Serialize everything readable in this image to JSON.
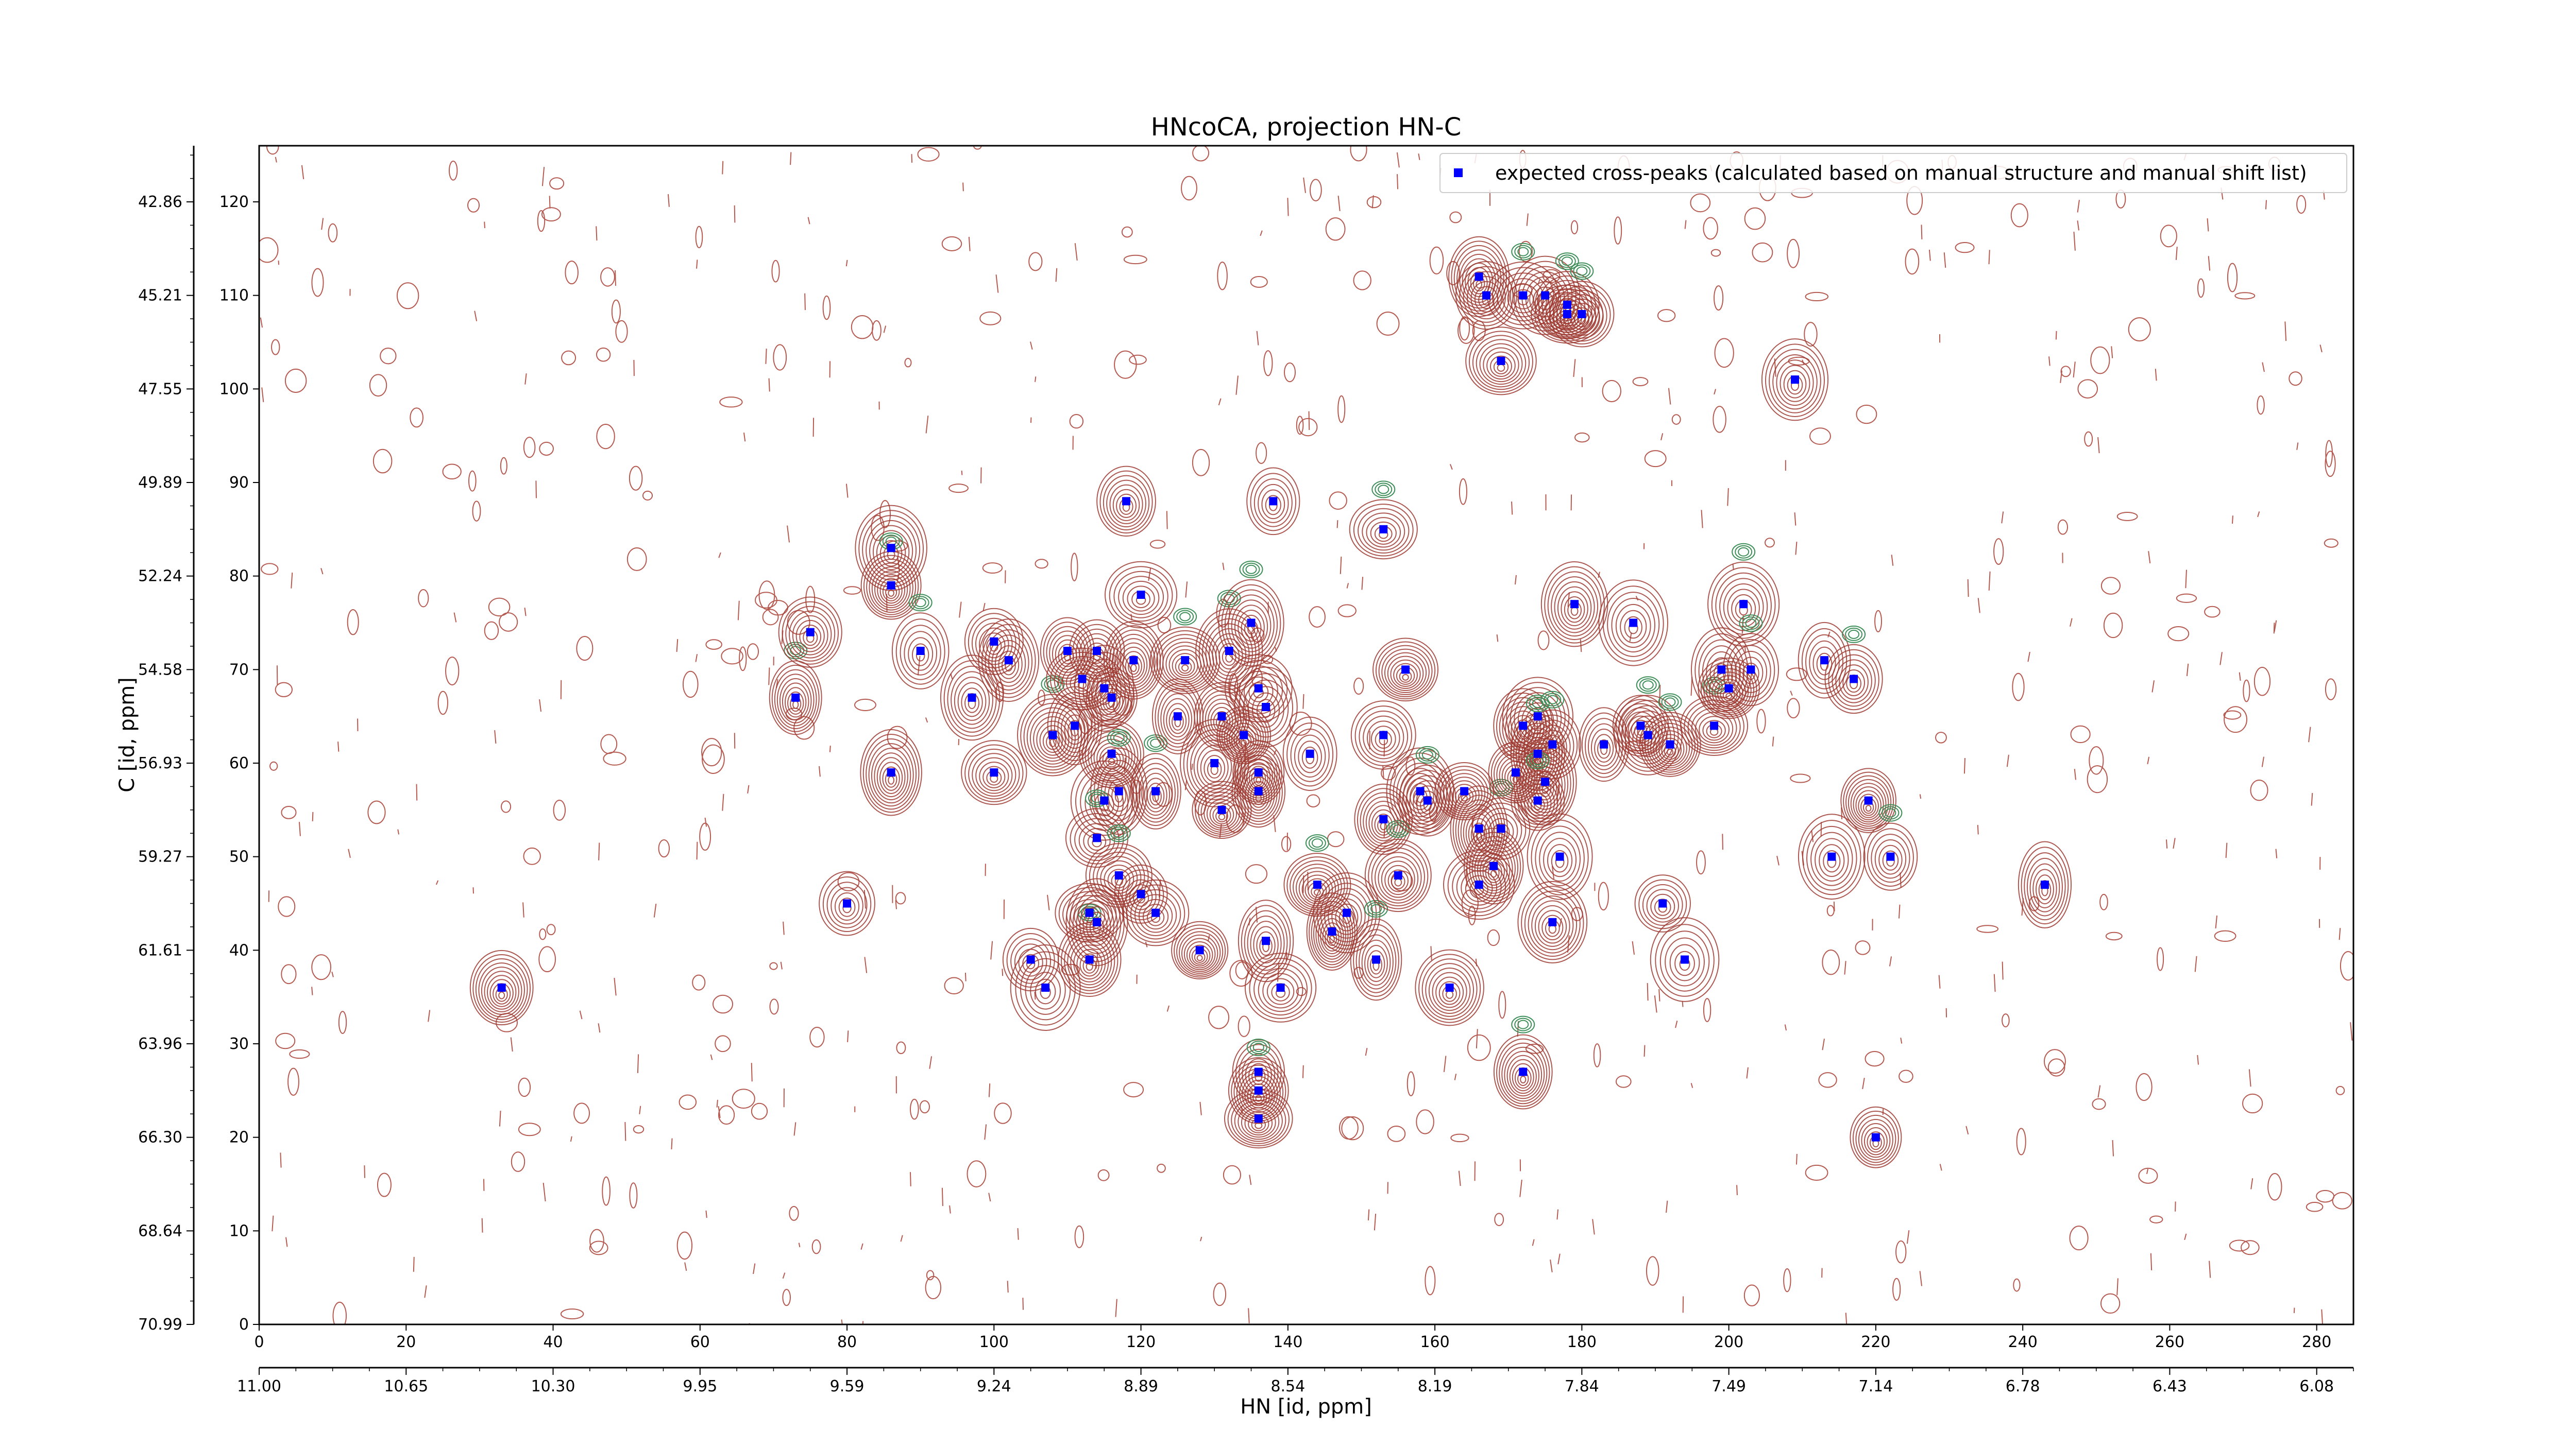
{
  "chart_data": {
    "type": "scatter",
    "title": "HNcoCA, projection HN-C",
    "xlabel": "HN [id, ppm]",
    "ylabel": "C [id, ppm]",
    "grid": false,
    "legend_position": "top-right",
    "x_index_ticks": [
      "0",
      "20",
      "40",
      "60",
      "80",
      "100",
      "120",
      "140",
      "160",
      "180",
      "200",
      "220",
      "240",
      "260",
      "280"
    ],
    "x_ppm_ticks": [
      "11.00",
      "10.65",
      "10.30",
      "9.95",
      "9.59",
      "9.24",
      "8.89",
      "8.54",
      "8.19",
      "7.84",
      "7.49",
      "7.14",
      "6.78",
      "6.43",
      "6.08"
    ],
    "y_index_ticks": [
      "0",
      "10",
      "20",
      "30",
      "40",
      "50",
      "60",
      "70",
      "80",
      "90",
      "100",
      "110",
      "120"
    ],
    "y_ppm_ticks": [
      "70.99",
      "68.64",
      "66.30",
      "63.96",
      "61.61",
      "59.27",
      "56.93",
      "54.58",
      "52.24",
      "49.89",
      "47.55",
      "45.21",
      "42.86"
    ],
    "xlim": [
      0,
      285
    ],
    "ylim": [
      0,
      126
    ],
    "series": [
      {
        "name": "expected cross-peaks (calculated based on manual structure and manual shift list)",
        "color": "#0000ff",
        "marker": "square",
        "points": [
          [
            33,
            36
          ],
          [
            80,
            45
          ],
          [
            73,
            67
          ],
          [
            75,
            74
          ],
          [
            86,
            83
          ],
          [
            86,
            79
          ],
          [
            86,
            59
          ],
          [
            90,
            72
          ],
          [
            97,
            67
          ],
          [
            100,
            73
          ],
          [
            100,
            59
          ],
          [
            102,
            71
          ],
          [
            108,
            63
          ],
          [
            110,
            72
          ],
          [
            111,
            64
          ],
          [
            112,
            69
          ],
          [
            114,
            72
          ],
          [
            115,
            68
          ],
          [
            116,
            67
          ],
          [
            119,
            71
          ],
          [
            120,
            78
          ],
          [
            116,
            61
          ],
          [
            117,
            57
          ],
          [
            115,
            56
          ],
          [
            118,
            88
          ],
          [
            122,
            57
          ],
          [
            114,
            52
          ],
          [
            117,
            48
          ],
          [
            120,
            46
          ],
          [
            113,
            44
          ],
          [
            113,
            39
          ],
          [
            114,
            43
          ],
          [
            122,
            44
          ],
          [
            125,
            65
          ],
          [
            126,
            71
          ],
          [
            128,
            40
          ],
          [
            105,
            39
          ],
          [
            107,
            36
          ],
          [
            131,
            65
          ],
          [
            132,
            72
          ],
          [
            130,
            60
          ],
          [
            131,
            55
          ],
          [
            134,
            63
          ],
          [
            135,
            75
          ],
          [
            136,
            57
          ],
          [
            136,
            59
          ],
          [
            136,
            68
          ],
          [
            137,
            66
          ],
          [
            138,
            88
          ],
          [
            137,
            41
          ],
          [
            139,
            36
          ],
          [
            136,
            27
          ],
          [
            136,
            25
          ],
          [
            136,
            22
          ],
          [
            143,
            61
          ],
          [
            144,
            47
          ],
          [
            146,
            42
          ],
          [
            148,
            44
          ],
          [
            152,
            39
          ],
          [
            153,
            54
          ],
          [
            155,
            48
          ],
          [
            153,
            63
          ],
          [
            153,
            85
          ],
          [
            156,
            70
          ],
          [
            158,
            57
          ],
          [
            159,
            56
          ],
          [
            162,
            36
          ],
          [
            166,
            47
          ],
          [
            168,
            49
          ],
          [
            166,
            53
          ],
          [
            169,
            53
          ],
          [
            164,
            57
          ],
          [
            166,
            112
          ],
          [
            167,
            110
          ],
          [
            169,
            103
          ],
          [
            172,
            110
          ],
          [
            175,
            110
          ],
          [
            178,
            109
          ],
          [
            178,
            108
          ],
          [
            180,
            108
          ],
          [
            171,
            59
          ],
          [
            174,
            65
          ],
          [
            172,
            64
          ],
          [
            174,
            61
          ],
          [
            176,
            62
          ],
          [
            175,
            58
          ],
          [
            174,
            56
          ],
          [
            177,
            50
          ],
          [
            176,
            43
          ],
          [
            172,
            27
          ],
          [
            179,
            77
          ],
          [
            183,
            62
          ],
          [
            187,
            75
          ],
          [
            188,
            64
          ],
          [
            189,
            63
          ],
          [
            192,
            62
          ],
          [
            191,
            45
          ],
          [
            194,
            39
          ],
          [
            198,
            64
          ],
          [
            199,
            70
          ],
          [
            200,
            68
          ],
          [
            202,
            77
          ],
          [
            203,
            70
          ],
          [
            209,
            101
          ],
          [
            213,
            71
          ],
          [
            217,
            69
          ],
          [
            214,
            50
          ],
          [
            219,
            56
          ],
          [
            222,
            50
          ],
          [
            220,
            20
          ],
          [
            243,
            47
          ]
        ]
      }
    ]
  }
}
